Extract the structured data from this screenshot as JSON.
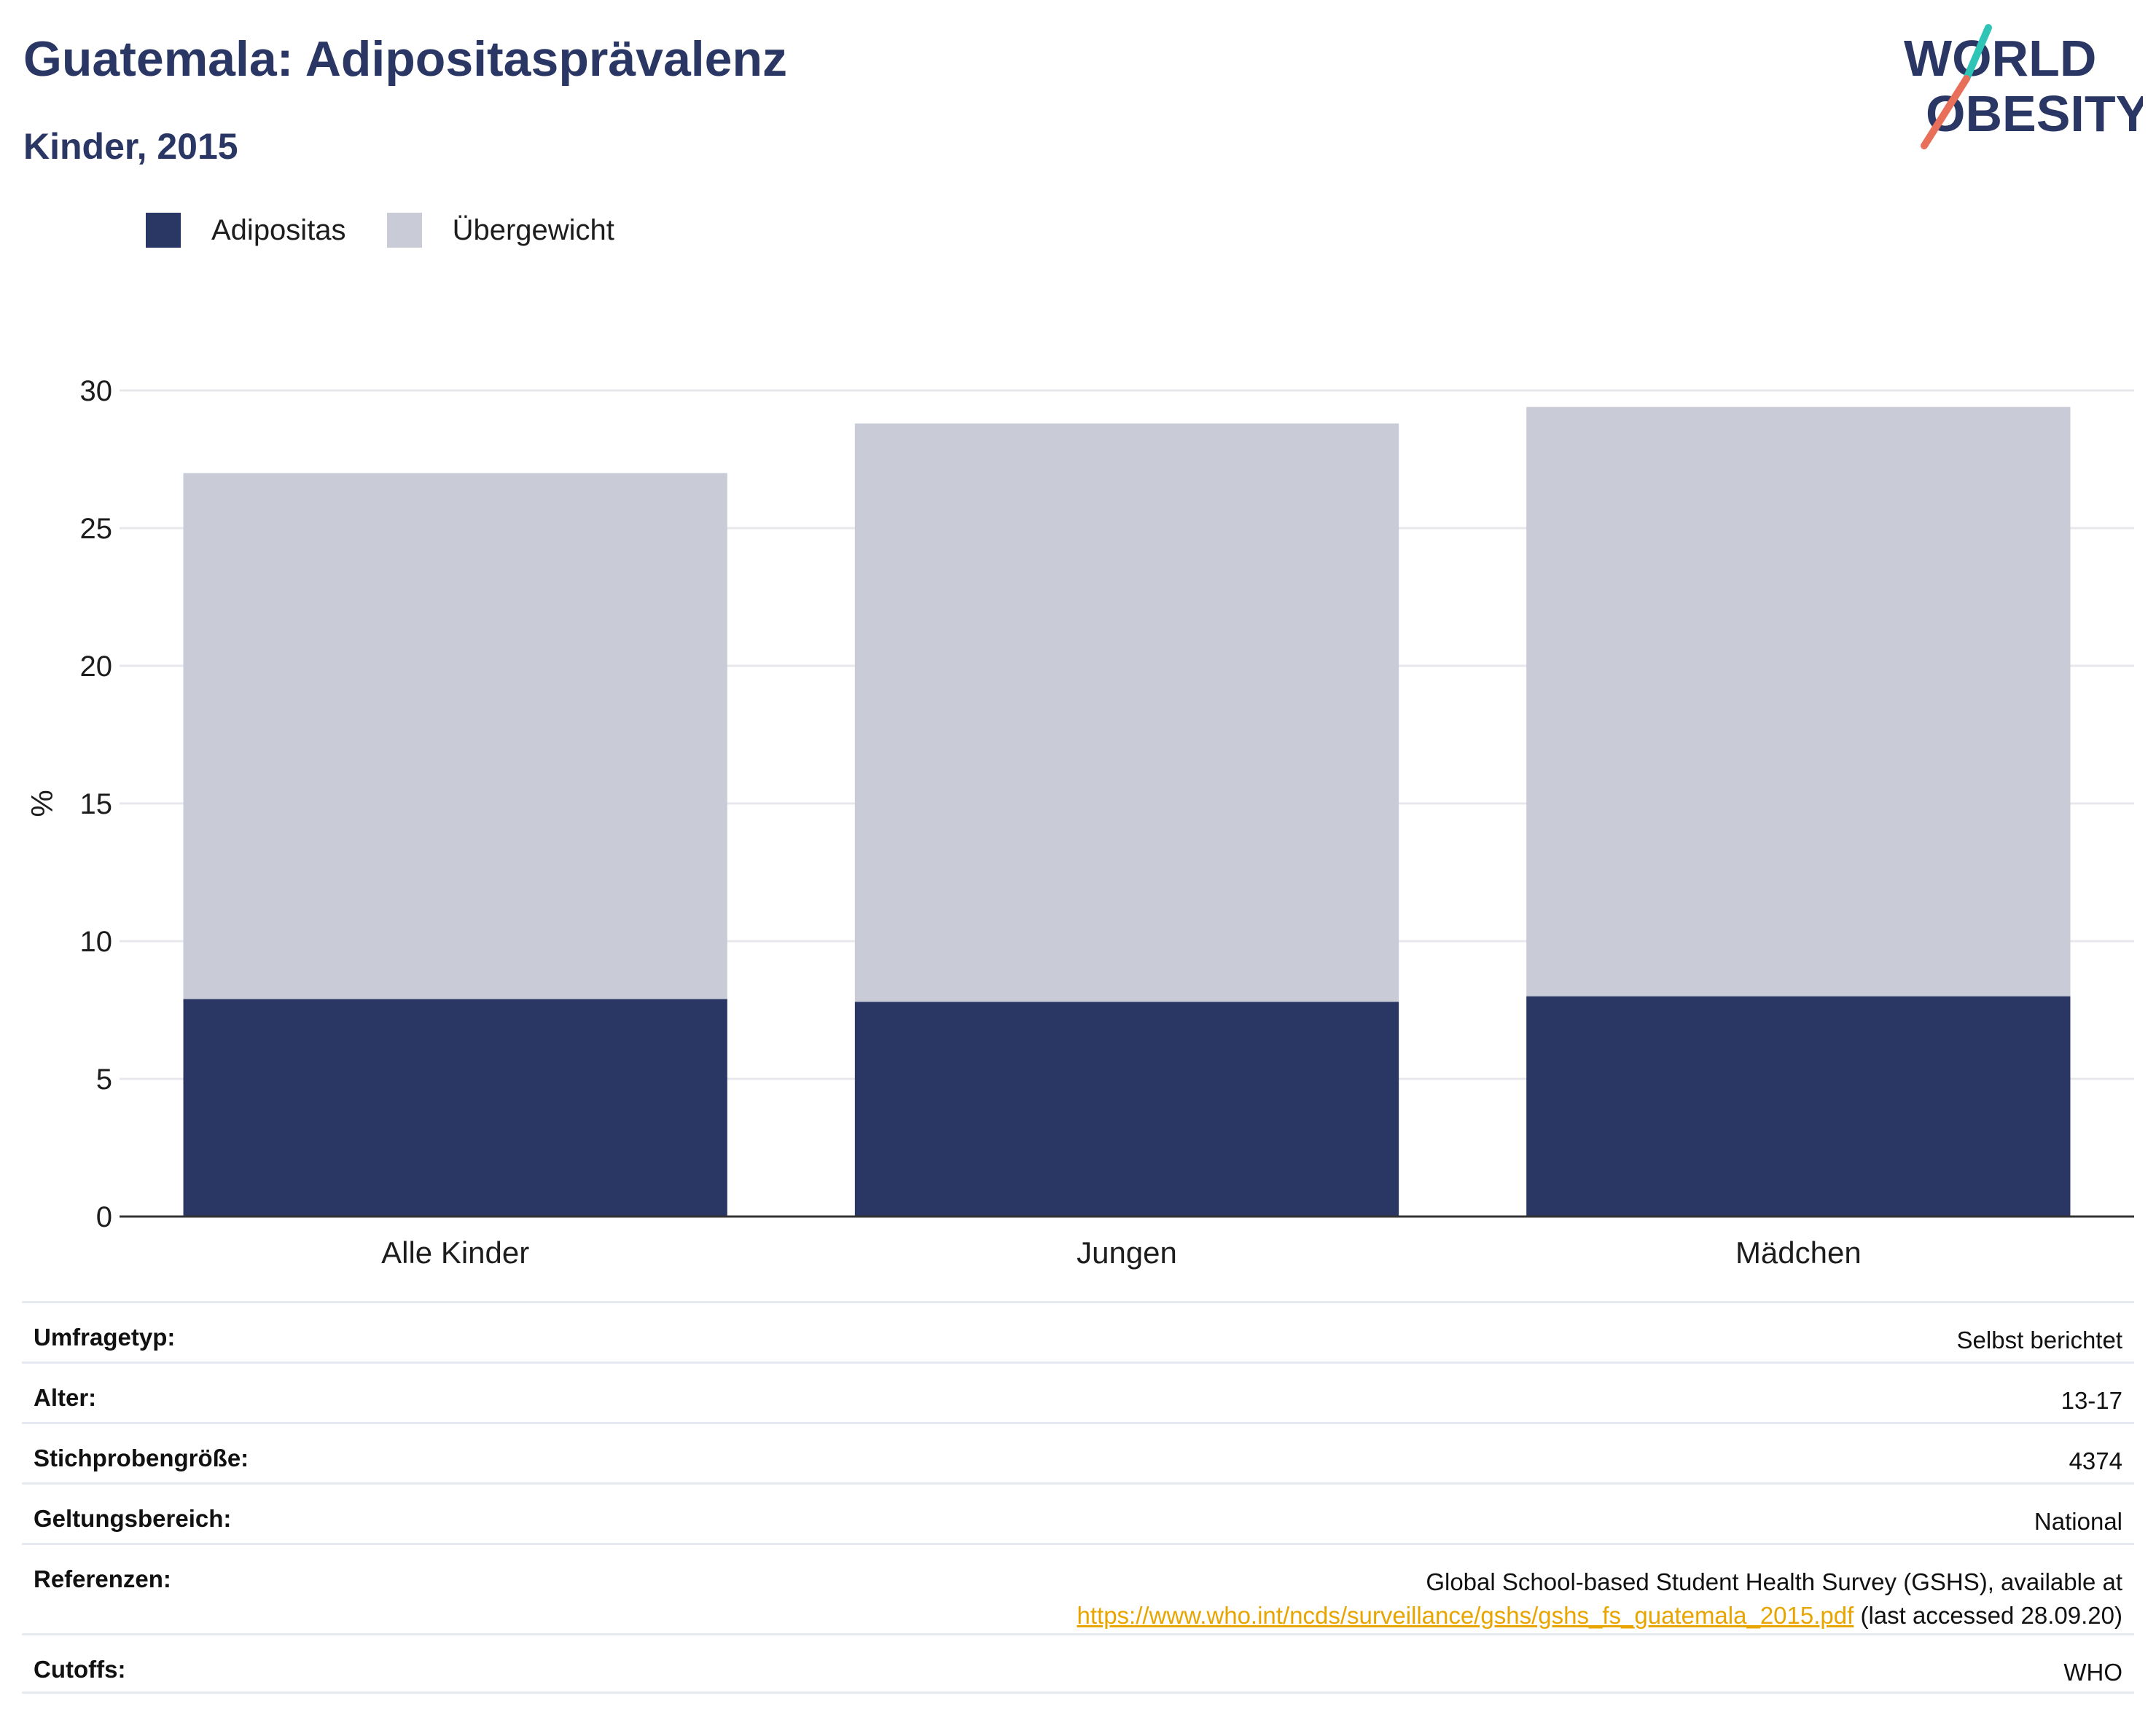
{
  "header": {
    "title": "Guatemala: Adipositasprävalenz",
    "subtitle": "Kinder, 2015"
  },
  "logo": {
    "line1": "WORLD",
    "line2": "OBESITY",
    "colors": {
      "text": "#2a3764",
      "slash_top": "#2ec4b6",
      "slash_bottom": "#e8705a"
    }
  },
  "colors": {
    "adipositas": "#2a3764",
    "uebergewicht": "#c9cbd7",
    "grid": "#e8e8ec",
    "axis": "#333333",
    "link": "#e8a500"
  },
  "chart_data": {
    "type": "bar",
    "stacked": true,
    "categories": [
      "Alle Kinder",
      "Jungen",
      "Mädchen"
    ],
    "series": [
      {
        "name": "Adipositas",
        "values": [
          7.9,
          7.8,
          8.0
        ]
      },
      {
        "name": "Übergewicht",
        "values": [
          19.1,
          21.0,
          21.4
        ]
      }
    ],
    "ylabel": "%",
    "ylim": [
      0,
      30
    ],
    "yticks": [
      0,
      5,
      10,
      15,
      20,
      25,
      30
    ],
    "grid": true,
    "legend_position": "top-left"
  },
  "meta": {
    "rows": [
      {
        "label": "Umfragetyp:",
        "value": "Selbst berichtet"
      },
      {
        "label": "Alter:",
        "value": "13-17"
      },
      {
        "label": "Stichprobengröße:",
        "value": "4374"
      },
      {
        "label": "Geltungsbereich:",
        "value": "National"
      },
      {
        "label": "Referenzen:",
        "value": "Global School-based Student Health Survey (GSHS), available at",
        "link": "https://www.who.int/ncds/surveillance/gshs/gshs_fs_guatemala_2015.pdf",
        "suffix": " (last accessed 28.09.20)"
      },
      {
        "label": "Cutoffs:",
        "value": "WHO"
      }
    ]
  }
}
